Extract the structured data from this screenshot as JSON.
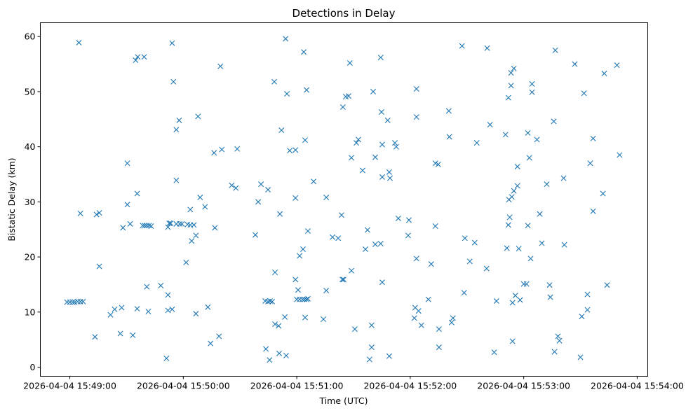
{
  "chart_data": {
    "type": "scatter",
    "title": "Detections in Delay",
    "xlabel": "Time (UTC)",
    "ylabel": "Bistatic Delay (km)",
    "x_units": "seconds after 2026-04-04 15:49:00",
    "xlim": [
      -15.6,
      305.6
    ],
    "ylim": [
      -1.65,
      62.5
    ],
    "grid": false,
    "marker": "x",
    "color": "#1f77b4",
    "x_ticks": [
      {
        "value": 0,
        "label": "2026-04-04 15:49:00"
      },
      {
        "value": 60,
        "label": "2026-04-04 15:50:00"
      },
      {
        "value": 120,
        "label": "2026-04-04 15:51:00"
      },
      {
        "value": 180,
        "label": "2026-04-04 15:52:00"
      },
      {
        "value": 240,
        "label": "2026-04-04 15:53:00"
      },
      {
        "value": 300,
        "label": "2026-04-04 15:54:00"
      }
    ],
    "y_ticks": [
      {
        "value": 0,
        "label": "0"
      },
      {
        "value": 10,
        "label": "10"
      },
      {
        "value": 20,
        "label": "20"
      },
      {
        "value": 30,
        "label": "30"
      },
      {
        "value": 40,
        "label": "40"
      },
      {
        "value": 50,
        "label": "50"
      },
      {
        "value": 60,
        "label": "60"
      }
    ],
    "points": [
      [
        -1.5,
        11.8
      ],
      [
        0,
        11.8
      ],
      [
        1.5,
        11.8
      ],
      [
        2.6,
        11.8
      ],
      [
        4.1,
        11.9
      ],
      [
        5.6,
        11.9
      ],
      [
        7.0,
        11.9
      ],
      [
        4.8,
        58.9
      ],
      [
        5.6,
        27.9
      ],
      [
        13.3,
        5.5
      ],
      [
        14.1,
        27.7
      ],
      [
        15.6,
        28.0
      ],
      [
        15.6,
        18.3
      ],
      [
        21.5,
        9.5
      ],
      [
        23.7,
        10.5
      ],
      [
        26.7,
        6.1
      ],
      [
        27.4,
        10.8
      ],
      [
        28.1,
        25.3
      ],
      [
        30.4,
        37.0
      ],
      [
        30.4,
        29.5
      ],
      [
        31.9,
        26.0
      ],
      [
        33.3,
        5.8
      ],
      [
        35.6,
        31.5
      ],
      [
        35.6,
        10.6
      ],
      [
        34.8,
        55.7
      ],
      [
        35.9,
        56.3
      ],
      [
        39.3,
        56.3
      ],
      [
        38.5,
        25.7
      ],
      [
        39.6,
        25.7
      ],
      [
        40.7,
        25.7
      ],
      [
        41.9,
        25.7
      ],
      [
        43.0,
        25.6
      ],
      [
        40.7,
        14.6
      ],
      [
        41.5,
        10.1
      ],
      [
        48.1,
        14.8
      ],
      [
        51.1,
        1.6
      ],
      [
        51.9,
        13.1
      ],
      [
        51.9,
        25.4
      ],
      [
        52.6,
        26.1
      ],
      [
        53.3,
        26.1
      ],
      [
        51.9,
        10.3
      ],
      [
        54.1,
        10.5
      ],
      [
        54.1,
        58.8
      ],
      [
        54.8,
        51.8
      ],
      [
        56.3,
        43.1
      ],
      [
        57.8,
        44.8
      ],
      [
        56.3,
        33.9
      ],
      [
        56.3,
        26.0
      ],
      [
        58.1,
        26.0
      ],
      [
        59.3,
        26.0
      ],
      [
        61.5,
        19.0
      ],
      [
        62.2,
        25.9
      ],
      [
        63.7,
        25.8
      ],
      [
        65.6,
        25.8
      ],
      [
        63.7,
        28.6
      ],
      [
        64.4,
        22.9
      ],
      [
        66.7,
        23.9
      ],
      [
        66.7,
        9.7
      ],
      [
        67.8,
        45.5
      ],
      [
        68.9,
        30.8
      ],
      [
        71.5,
        29.1
      ],
      [
        73.0,
        10.9
      ],
      [
        74.4,
        4.3
      ],
      [
        76.3,
        38.9
      ],
      [
        76.7,
        25.3
      ],
      [
        78.9,
        5.6
      ],
      [
        79.6,
        54.6
      ],
      [
        80.4,
        39.5
      ],
      [
        85.6,
        33.0
      ],
      [
        87.8,
        32.5
      ],
      [
        88.5,
        39.6
      ],
      [
        98.1,
        24.0
      ],
      [
        99.6,
        30.0
      ],
      [
        101.1,
        33.2
      ],
      [
        103.3,
        12.0
      ],
      [
        104.8,
        11.9
      ],
      [
        105.9,
        12.0
      ],
      [
        107.0,
        11.9
      ],
      [
        103.7,
        3.3
      ],
      [
        104.8,
        32.2
      ],
      [
        105.6,
        1.3
      ],
      [
        108.1,
        51.8
      ],
      [
        108.5,
        17.2
      ],
      [
        108.5,
        7.8
      ],
      [
        110.4,
        7.5
      ],
      [
        110.7,
        2.5
      ],
      [
        111.1,
        27.8
      ],
      [
        111.9,
        43.0
      ],
      [
        113.7,
        9.1
      ],
      [
        114.1,
        59.6
      ],
      [
        114.4,
        2.1
      ],
      [
        114.8,
        49.6
      ],
      [
        116.3,
        39.3
      ],
      [
        119.3,
        39.4
      ],
      [
        119.3,
        30.7
      ],
      [
        119.3,
        15.9
      ],
      [
        120.7,
        14.0
      ],
      [
        121.5,
        20.2
      ],
      [
        120.0,
        12.3
      ],
      [
        121.5,
        12.3
      ],
      [
        123.0,
        12.3
      ],
      [
        124.1,
        12.3
      ],
      [
        125.2,
        12.3
      ],
      [
        125.9,
        12.4
      ],
      [
        123.3,
        21.4
      ],
      [
        123.7,
        57.2
      ],
      [
        124.4,
        9.0
      ],
      [
        124.4,
        41.2
      ],
      [
        125.2,
        50.3
      ],
      [
        125.9,
        24.7
      ],
      [
        128.9,
        33.7
      ],
      [
        134.1,
        8.7
      ],
      [
        135.6,
        30.8
      ],
      [
        135.6,
        13.9
      ],
      [
        138.9,
        23.6
      ],
      [
        141.9,
        23.4
      ],
      [
        143.7,
        27.6
      ],
      [
        144.1,
        15.9
      ],
      [
        144.8,
        15.9
      ],
      [
        144.4,
        47.2
      ],
      [
        145.9,
        49.1
      ],
      [
        147.4,
        49.2
      ],
      [
        148.1,
        55.2
      ],
      [
        148.9,
        38.0
      ],
      [
        148.9,
        17.5
      ],
      [
        150.7,
        6.9
      ],
      [
        151.5,
        40.7
      ],
      [
        152.6,
        41.3
      ],
      [
        154.8,
        35.7
      ],
      [
        156.3,
        21.4
      ],
      [
        157.4,
        24.9
      ],
      [
        158.5,
        1.4
      ],
      [
        159.6,
        7.6
      ],
      [
        159.6,
        3.6
      ],
      [
        160.4,
        50.0
      ],
      [
        161.5,
        38.1
      ],
      [
        161.5,
        22.3
      ],
      [
        164.4,
        22.4
      ],
      [
        164.4,
        56.2
      ],
      [
        164.8,
        46.3
      ],
      [
        165.2,
        40.4
      ],
      [
        165.2,
        34.5
      ],
      [
        165.2,
        15.4
      ],
      [
        168.1,
        44.8
      ],
      [
        168.9,
        35.4
      ],
      [
        169.3,
        34.3
      ],
      [
        168.9,
        2.0
      ],
      [
        171.9,
        40.7
      ],
      [
        172.6,
        40.0
      ],
      [
        173.7,
        27.0
      ],
      [
        178.9,
        23.9
      ],
      [
        179.3,
        26.7
      ],
      [
        182.2,
        8.9
      ],
      [
        182.6,
        10.8
      ],
      [
        183.3,
        50.5
      ],
      [
        183.3,
        45.4
      ],
      [
        183.3,
        19.7
      ],
      [
        184.4,
        10.2
      ],
      [
        185.9,
        7.6
      ],
      [
        189.6,
        12.3
      ],
      [
        191.1,
        18.7
      ],
      [
        193.3,
        37.0
      ],
      [
        193.3,
        25.6
      ],
      [
        194.8,
        36.8
      ],
      [
        195.2,
        6.9
      ],
      [
        195.2,
        3.6
      ],
      [
        200.4,
        46.5
      ],
      [
        200.7,
        41.8
      ],
      [
        201.9,
        8.1
      ],
      [
        202.6,
        8.9
      ],
      [
        207.4,
        58.3
      ],
      [
        208.5,
        13.5
      ],
      [
        208.9,
        23.4
      ],
      [
        211.5,
        19.2
      ],
      [
        214.1,
        22.6
      ],
      [
        215.2,
        40.7
      ],
      [
        220.4,
        17.9
      ],
      [
        220.7,
        57.9
      ],
      [
        222.2,
        44.0
      ],
      [
        224.4,
        2.7
      ],
      [
        225.6,
        12.0
      ],
      [
        230.4,
        42.2
      ],
      [
        231.1,
        21.6
      ],
      [
        231.9,
        48.9
      ],
      [
        231.9,
        25.8
      ],
      [
        232.2,
        30.4
      ],
      [
        232.6,
        27.2
      ],
      [
        233.3,
        51.1
      ],
      [
        233.3,
        53.4
      ],
      [
        233.7,
        30.9
      ],
      [
        234.1,
        11.7
      ],
      [
        234.1,
        4.7
      ],
      [
        234.8,
        54.2
      ],
      [
        234.8,
        32.0
      ],
      [
        235.6,
        13.0
      ],
      [
        236.7,
        32.9
      ],
      [
        236.7,
        36.4
      ],
      [
        237.4,
        21.5
      ],
      [
        238.1,
        12.2
      ],
      [
        240.0,
        15.1
      ],
      [
        241.5,
        15.1
      ],
      [
        242.2,
        42.5
      ],
      [
        242.2,
        25.7
      ],
      [
        243.0,
        38.0
      ],
      [
        243.7,
        19.7
      ],
      [
        244.4,
        51.4
      ],
      [
        244.4,
        49.9
      ],
      [
        247.0,
        41.3
      ],
      [
        248.5,
        27.8
      ],
      [
        249.6,
        22.5
      ],
      [
        252.2,
        33.2
      ],
      [
        253.7,
        14.9
      ],
      [
        254.1,
        12.7
      ],
      [
        255.9,
        44.6
      ],
      [
        256.3,
        2.8
      ],
      [
        256.7,
        57.5
      ],
      [
        258.1,
        5.6
      ],
      [
        258.9,
        4.8
      ],
      [
        261.1,
        34.3
      ],
      [
        261.5,
        22.2
      ],
      [
        267.0,
        55.0
      ],
      [
        270.0,
        1.8
      ],
      [
        270.7,
        9.2
      ],
      [
        271.9,
        49.7
      ],
      [
        273.7,
        13.2
      ],
      [
        273.7,
        10.4
      ],
      [
        275.2,
        37.0
      ],
      [
        276.7,
        28.3
      ],
      [
        276.7,
        41.5
      ],
      [
        281.9,
        31.5
      ],
      [
        282.6,
        53.3
      ],
      [
        284.1,
        14.9
      ],
      [
        289.3,
        54.8
      ],
      [
        290.7,
        38.5
      ]
    ]
  }
}
